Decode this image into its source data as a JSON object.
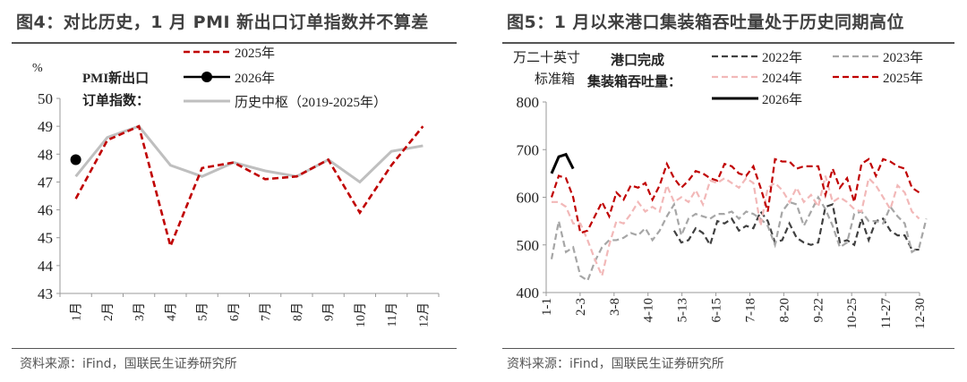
{
  "left": {
    "title": "图4：对比历史，1 月 PMI 新出口订单指数并不算差",
    "source": "资料来源：iFind，国联民生证券研究所"
  },
  "right": {
    "title": "图5：1 月以来港口集装箱吞吐量处于历史同期高位",
    "source": "资料来源：iFind，国联民生证券研究所"
  },
  "chart_data": [
    {
      "type": "line",
      "unit": "%",
      "label_lines": [
        "PMI新出口",
        "订单指数："
      ],
      "categories": [
        "1月",
        "2月",
        "3月",
        "4月",
        "5月",
        "6月",
        "7月",
        "8月",
        "9月",
        "10月",
        "11月",
        "12月"
      ],
      "ylim": [
        43,
        50
      ],
      "yticks": [
        43,
        44,
        45,
        46,
        47,
        48,
        49,
        50
      ],
      "grid": false,
      "legend_placement": "top",
      "series": [
        {
          "name": "2025年",
          "color": "#C00000",
          "style": "dashed",
          "values": [
            46.4,
            48.5,
            49.0,
            44.7,
            47.5,
            47.7,
            47.1,
            47.2,
            47.8,
            45.9,
            47.6,
            49.0
          ]
        },
        {
          "name": "2026年",
          "color": "#000000",
          "style": "marker",
          "values": [
            47.8,
            null,
            null,
            null,
            null,
            null,
            null,
            null,
            null,
            null,
            null,
            null
          ]
        },
        {
          "name": "历史中枢（2019-2025年）",
          "color": "#BFBFBF",
          "style": "solid",
          "values": [
            47.2,
            48.6,
            49.0,
            47.6,
            47.2,
            47.7,
            47.4,
            47.2,
            47.8,
            47.0,
            48.1,
            48.3
          ]
        }
      ]
    },
    {
      "type": "line",
      "unit_lines": [
        "万二十英寸",
        "标准箱"
      ],
      "label_lines": [
        "港口完成",
        "集装箱吞吐量："
      ],
      "x_ticks": [
        "1-1",
        "2-3",
        "3-8",
        "4-10",
        "5-13",
        "6-15",
        "7-18",
        "8-20",
        "9-22",
        "10-25",
        "11-27",
        "12-30"
      ],
      "ylim": [
        400,
        800
      ],
      "yticks": [
        400,
        500,
        600,
        700,
        800
      ],
      "grid": false,
      "legend_placement": "top-right",
      "series": [
        {
          "name": "2022年",
          "color": "#404040",
          "style": "dashed",
          "values": [
            null,
            null,
            null,
            null,
            null,
            null,
            null,
            null,
            null,
            null,
            null,
            null,
            null,
            null,
            null,
            null,
            null,
            530,
            505,
            510,
            535,
            525,
            500,
            550,
            545,
            555,
            530,
            540,
            535,
            570,
            550,
            505,
            510,
            545,
            515,
            505,
            500,
            505,
            580,
            585,
            505,
            510,
            500,
            555,
            510,
            550,
            555,
            530,
            520,
            520,
            490,
            490
          ]
        },
        {
          "name": "2023年",
          "color": "#A6A6A6",
          "style": "dashed",
          "values": [
            470,
            550,
            485,
            495,
            435,
            425,
            465,
            495,
            510,
            510,
            515,
            525,
            520,
            535,
            510,
            530,
            560,
            585,
            520,
            555,
            565,
            560,
            555,
            565,
            565,
            570,
            555,
            570,
            565,
            555,
            540,
            500,
            570,
            590,
            585,
            540,
            570,
            600,
            575,
            540,
            495,
            505,
            565,
            570,
            550,
            550,
            545,
            580,
            560,
            545,
            485,
            495,
            555
          ]
        },
        {
          "name": "2024年",
          "color": "#F2B8B8",
          "style": "dashed",
          "values": [
            590,
            590,
            580,
            545,
            545,
            510,
            470,
            435,
            500,
            550,
            545,
            565,
            590,
            570,
            580,
            570,
            625,
            590,
            600,
            590,
            615,
            585,
            635,
            630,
            640,
            630,
            620,
            640,
            630,
            540,
            620,
            630,
            615,
            590,
            620,
            590,
            605,
            580,
            645,
            590,
            600,
            590,
            575,
            570,
            640,
            625,
            600,
            575,
            625,
            610,
            570,
            555
          ]
        },
        {
          "name": "2025年",
          "color": "#C00000",
          "style": "dashed",
          "values": [
            600,
            645,
            640,
            600,
            525,
            530,
            560,
            590,
            560,
            610,
            595,
            625,
            620,
            630,
            595,
            625,
            670,
            640,
            620,
            635,
            655,
            650,
            640,
            635,
            670,
            665,
            650,
            645,
            665,
            620,
            570,
            680,
            675,
            675,
            660,
            665,
            665,
            665,
            605,
            660,
            620,
            640,
            590,
            670,
            680,
            645,
            680,
            675,
            665,
            660,
            620,
            610
          ]
        },
        {
          "name": "2026年",
          "color": "#000000",
          "style": "solid",
          "values": [
            650,
            685,
            690,
            660
          ]
        }
      ]
    }
  ]
}
